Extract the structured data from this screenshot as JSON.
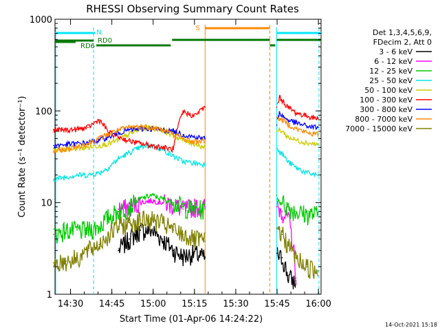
{
  "chart_data": {
    "type": "line",
    "title": "RHESSI Observing Summary Count Rates",
    "xlabel": "Start Time (01-Apr-06 14:24:22)",
    "ylabel": "Count Rate (s⁻¹ detector⁻¹)",
    "y_scale": "log",
    "ylim": [
      1,
      1000
    ],
    "xlim": [
      "14:24:22",
      "16:01:00"
    ],
    "x_ticks": [
      "14:30",
      "14:45",
      "15:00",
      "15:15",
      "15:30",
      "15:45",
      "16:00"
    ],
    "y_ticks": [
      "1",
      "10",
      "100",
      "1000"
    ],
    "legend_header": [
      "Det 1,3,4,5,6,9,",
      "FDecim 2, Att 0"
    ],
    "legend_position": "right",
    "grid": false,
    "flags": {
      "saa_label": "N",
      "night_label": "S",
      "rd0_label": "RD0",
      "rd6_label": "RD6"
    },
    "flag_colors": {
      "saa": "#00e5ff",
      "night": "#ff8800",
      "rd": "#007700"
    },
    "gap_minutes": [
      [
        14.5,
        15.5
      ],
      [
        54.5,
        63.5
      ],
      [
        78.5,
        80.5
      ],
      [
        95.5,
        100
      ]
    ],
    "band_x_minutes": [
      -0.5,
      4,
      8,
      12,
      16,
      19.5,
      23,
      27,
      31,
      35,
      39,
      43,
      46.5,
      50.5,
      54.5,
      63.5,
      67.5,
      71.5,
      75.5,
      78.5,
      80.5,
      81.5,
      82.5,
      84.5,
      87.5,
      91.5,
      95.5
    ],
    "series": [
      {
        "name": "3 - 6 keV",
        "color": "#000000",
        "values": [
          null,
          null,
          null,
          null,
          null,
          null,
          3,
          4,
          5,
          5,
          4,
          3,
          2.6,
          2.8,
          2.5,
          null,
          null,
          null,
          null,
          null,
          2.8,
          2.5,
          2.5,
          1.6,
          1.3,
          null,
          null
        ]
      },
      {
        "name": "6 - 12 keV",
        "color": "#ff00ff",
        "values": [
          null,
          null,
          null,
          null,
          null,
          null,
          8.5,
          9,
          10,
          10.5,
          10,
          9.5,
          8.5,
          9,
          9,
          null,
          null,
          null,
          null,
          null,
          9,
          8.5,
          8,
          7,
          1.5,
          null,
          null
        ]
      },
      {
        "name": "12 - 25 keV",
        "color": "#00cc00",
        "values": [
          4.5,
          5,
          5,
          5,
          5.5,
          7,
          8,
          9,
          11,
          12,
          11,
          10,
          9,
          8.5,
          8.5,
          null,
          null,
          null,
          null,
          null,
          12,
          10,
          10,
          9,
          8,
          7.5,
          7.5
        ]
      },
      {
        "name": "25 - 50 keV",
        "color": "#00e5e5",
        "values": [
          18,
          19,
          20,
          20,
          21,
          24,
          30,
          35,
          40,
          42,
          38,
          32,
          28,
          27,
          26,
          null,
          null,
          null,
          null,
          null,
          42,
          36,
          34,
          28,
          24,
          21,
          20
        ]
      },
      {
        "name": "50 - 100 keV",
        "color": "#cccc00",
        "values": [
          37,
          38,
          39,
          40,
          42,
          44,
          48,
          56,
          63,
          66,
          62,
          54,
          48,
          44,
          40,
          null,
          null,
          null,
          null,
          null,
          60,
          62,
          60,
          52,
          48,
          45,
          43
        ]
      },
      {
        "name": "100 - 300 keV",
        "color": "#ff0000",
        "values": [
          62,
          62,
          63,
          66,
          80,
          58,
          52,
          47,
          44,
          42,
          40,
          38,
          98,
          88,
          110,
          null,
          null,
          null,
          null,
          null,
          110,
          140,
          130,
          110,
          95,
          88,
          82
        ]
      },
      {
        "name": "300 - 800 keV",
        "color": "#0000ff",
        "values": [
          42,
          43,
          44,
          45,
          48,
          52,
          58,
          62,
          64,
          64,
          62,
          60,
          55,
          52,
          50,
          null,
          null,
          null,
          null,
          null,
          70,
          98,
          88,
          80,
          74,
          68,
          66
        ]
      },
      {
        "name": "800 - 7000 keV",
        "color": "#ff8800",
        "values": [
          36,
          38,
          41,
          44,
          50,
          56,
          62,
          66,
          68,
          66,
          62,
          56,
          50,
          46,
          48,
          null,
          null,
          null,
          null,
          null,
          85,
          82,
          80,
          72,
          64,
          58,
          55
        ]
      },
      {
        "name": "7000 - 15000 keV",
        "color": "#808000",
        "values": [
          2.2,
          2.3,
          2.5,
          3,
          3.5,
          4.5,
          5.5,
          6,
          6.5,
          6.5,
          6,
          5,
          4.5,
          4,
          3.8,
          null,
          null,
          null,
          null,
          null,
          5.2,
          5,
          4.5,
          3.5,
          2.5,
          2,
          1.8
        ]
      }
    ]
  },
  "footer": {
    "timestamp": "14-Oct-2021 15:18"
  }
}
